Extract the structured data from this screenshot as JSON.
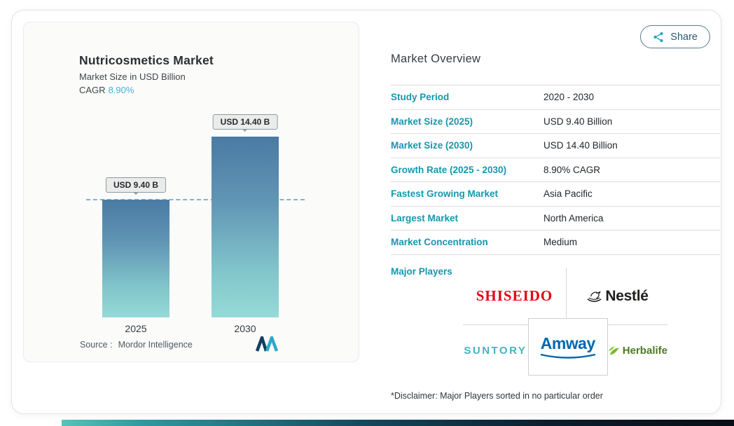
{
  "share": {
    "label": "Share"
  },
  "chart": {
    "title": "Nutricosmetics Market",
    "subtitle": "Market Size in USD Billion",
    "cagr_label": "CAGR",
    "cagr_value": "8.90%",
    "source_prefix": "Source :",
    "source_name": "Mordor Intelligence"
  },
  "chart_data": {
    "type": "bar",
    "title": "Nutricosmetics Market",
    "ylabel": "Market Size in USD Billion",
    "categories": [
      "2025",
      "2030"
    ],
    "values": [
      9.4,
      14.4
    ],
    "value_labels": [
      "USD 9.40 B",
      "USD 14.40 B"
    ],
    "unit": "USD Billion",
    "cagr_percent": 8.9,
    "ylim": [
      0,
      14.4
    ],
    "reference_line_at": 9.4,
    "grid": false,
    "legend": "none",
    "bar_gradient_top": "#4A7BA4",
    "bar_gradient_bottom": "#95DAD7"
  },
  "overview": {
    "heading": "Market Overview",
    "rows": [
      {
        "label": "Study Period",
        "value": "2020 - 2030"
      },
      {
        "label": "Market Size (2025)",
        "value": "USD 9.40 Billion"
      },
      {
        "label": "Market Size (2030)",
        "value": "USD 14.40 Billion"
      },
      {
        "label": "Growth Rate (2025 - 2030)",
        "value": "8.90% CAGR"
      },
      {
        "label": "Fastest Growing Market",
        "value": "Asia Pacific"
      },
      {
        "label": "Largest Market",
        "value": "North America"
      },
      {
        "label": "Market Concentration",
        "value": "Medium"
      }
    ],
    "major_players_label": "Major Players",
    "major_players": [
      "SHISEIDO",
      "Nestlé",
      "SUNTORY",
      "Amway",
      "Herbalife"
    ],
    "disclaimer": "*Disclaimer: Major Players sorted in no particular order"
  },
  "icons": {
    "share": "share-nodes-icon",
    "mordor_logo": "mordor-intelligence-logo",
    "nestle_birds": "nestle-birds-icon",
    "herbalife_leaf": "herbalife-leaf-icon",
    "amway_swoosh": "amway-swoosh-icon"
  },
  "colors": {
    "accent_teal": "#1796AD",
    "cagr_teal": "#3CB4D1",
    "bar_top": "#4A7BA4",
    "bar_bottom": "#95DAD7",
    "dashed_line": "#7FB1D6",
    "shiseido_red": "#E60012",
    "nestle_black": "#1D1D1B",
    "suntory_teal": "#45B3BF",
    "amway_blue": "#0067B1",
    "herbalife_green": "#4C7A24",
    "strip_gradient_start": "#56C4B6",
    "strip_gradient_end": "#070D14"
  }
}
